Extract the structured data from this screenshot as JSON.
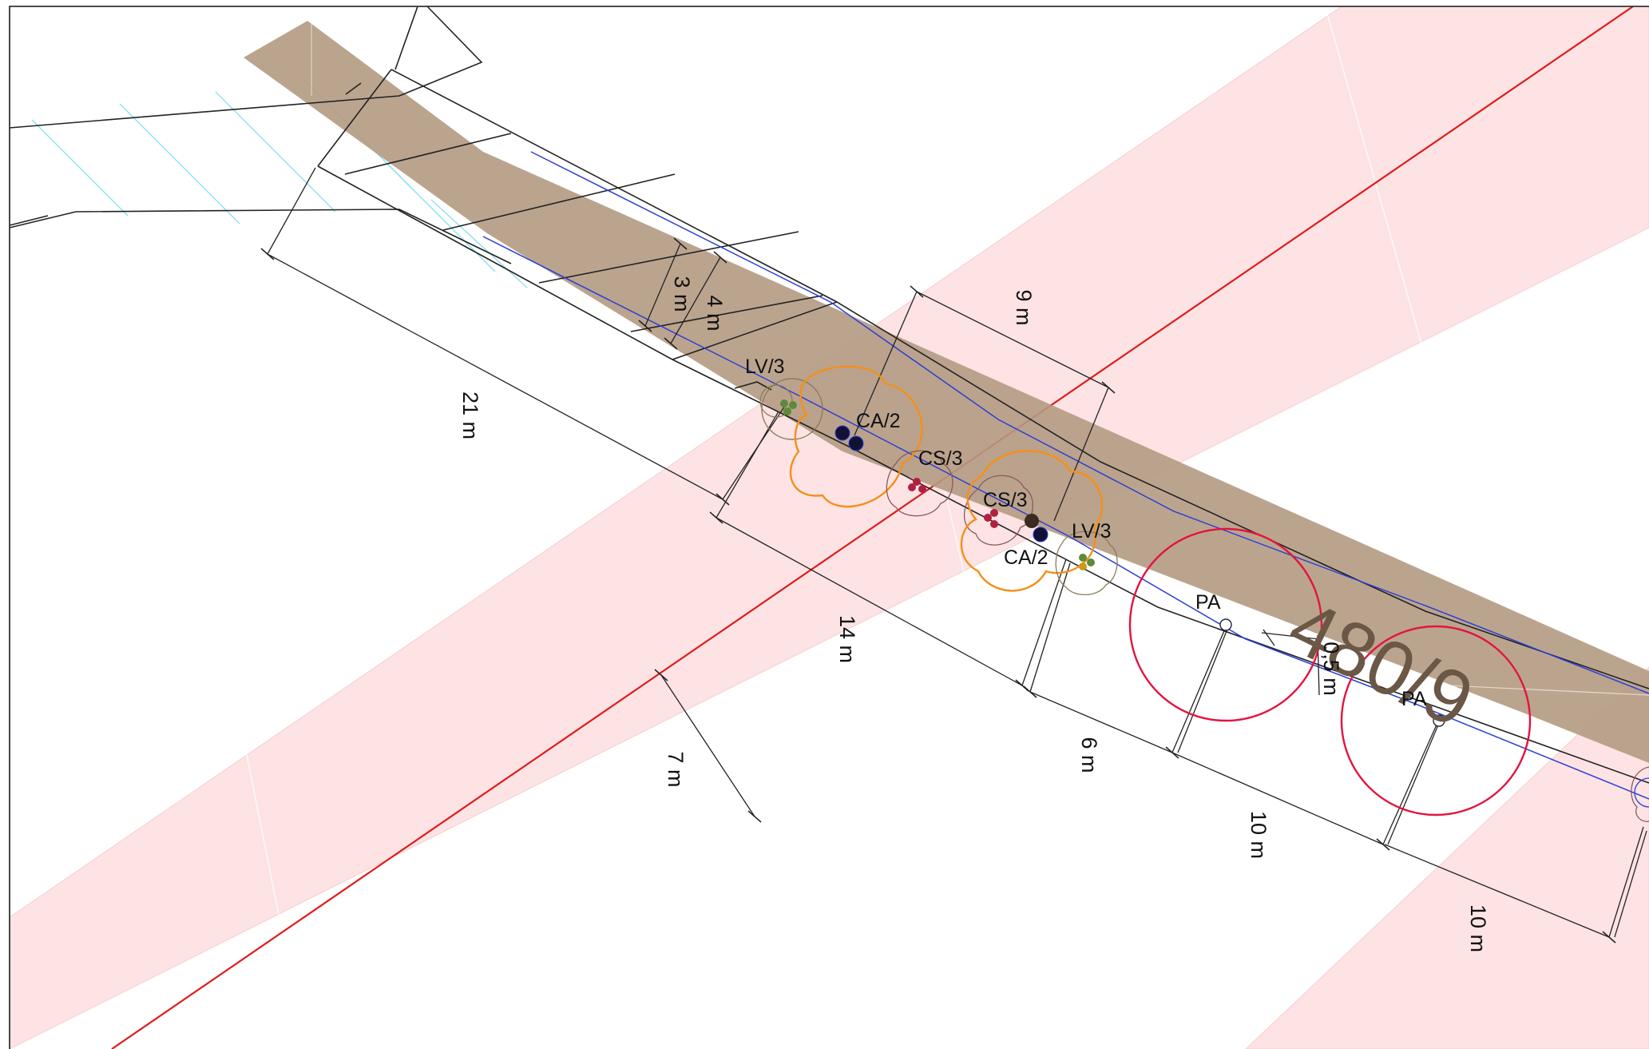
{
  "parcel": {
    "number": "480/9"
  },
  "trees": [
    {
      "code": "LV/3"
    },
    {
      "code": "CA/2"
    },
    {
      "code": "CS/3"
    },
    {
      "code": "CS/3"
    },
    {
      "code": "LV/3"
    },
    {
      "code": "CA/2"
    },
    {
      "code": "PA"
    },
    {
      "code": "PA"
    }
  ],
  "dimensions": {
    "d_21": "21 m",
    "d_14": "14 m",
    "d_6": "6 m",
    "d_10a": "10 m",
    "d_10b": "10 m",
    "d_9": "9 m",
    "d_3": "3 m",
    "d_4": "4 m",
    "d_7": "7 m",
    "d_05": "0,5 m"
  },
  "colors": {
    "protection_zone": "#fde3e4",
    "road_red": "#e01a1a",
    "parcel_band": "#b49a82",
    "utility_blue": "#2a3fd6",
    "canopy_orange": "#f39019",
    "canopy_pa": "#e3143f",
    "canopy_small": "#8a5a5a",
    "hatch_cyan": "#8fe0f2"
  }
}
